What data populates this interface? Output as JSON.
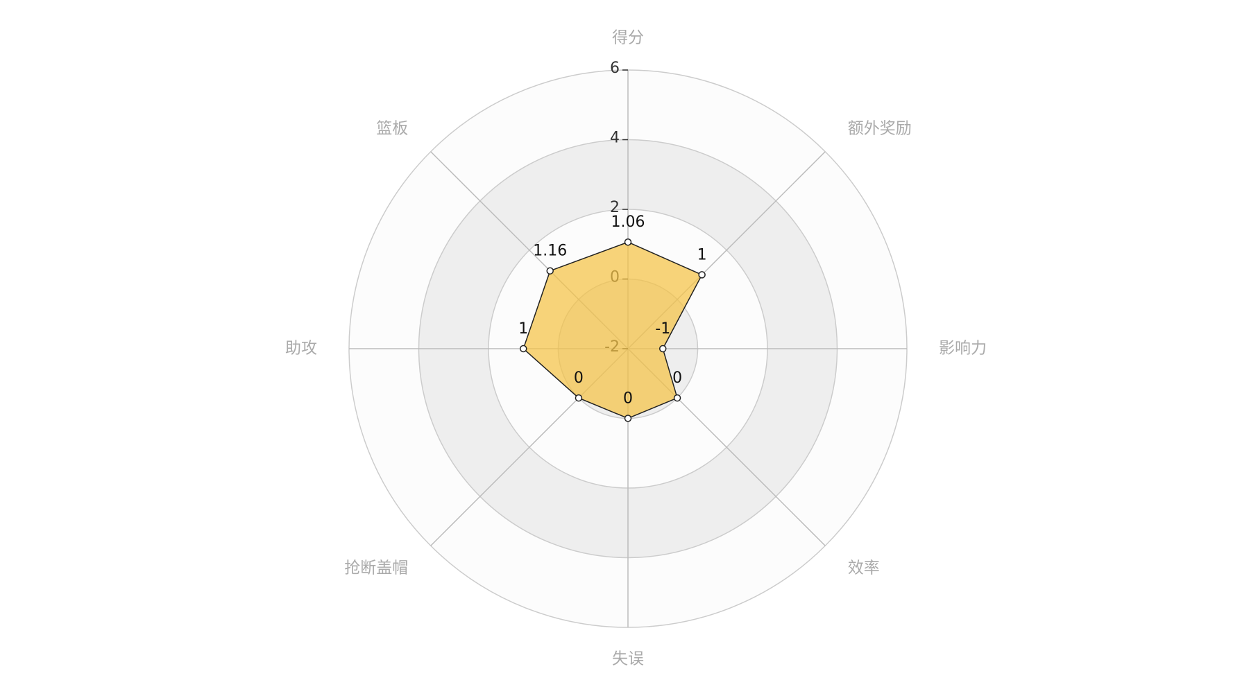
{
  "chart_data": {
    "type": "radar",
    "indicators": [
      "得分",
      "额外奖励",
      "影响力",
      "效率",
      "失误",
      "抢断盖帽",
      "助攻",
      "篮板"
    ],
    "values": [
      1.06,
      1,
      -1,
      0,
      0,
      0,
      1,
      1.16
    ],
    "rlim": [
      -2,
      6
    ],
    "rticks": [
      -2,
      0,
      2,
      4,
      6
    ],
    "color": "#f5c242",
    "line_color": "#222222"
  }
}
